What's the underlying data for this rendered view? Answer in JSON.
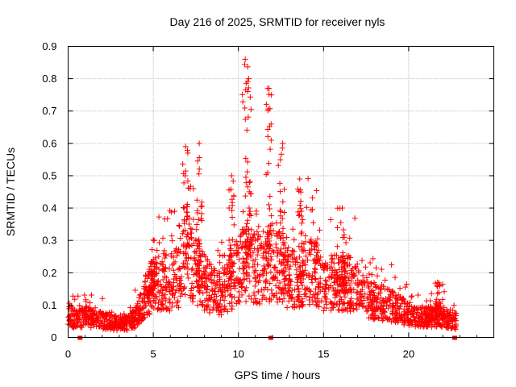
{
  "chart_data": {
    "type": "scatter",
    "title": "Day 216 of 2025, SRMTID for receiver nyls",
    "xlabel": "GPS time / hours",
    "ylabel": "SRMTID / TECUs",
    "xlim": [
      0,
      25
    ],
    "ylim": [
      0,
      0.9
    ],
    "grid": true,
    "x_ticks": [
      0,
      5,
      10,
      15,
      20
    ],
    "x_tick_labels": [
      "0",
      "5",
      "10",
      "15",
      "20"
    ],
    "y_ticks": [
      0,
      0.1,
      0.2,
      0.3,
      0.4,
      0.5,
      0.6,
      0.7,
      0.8,
      0.9
    ],
    "y_tick_labels": [
      "0",
      "0.1",
      "0.2",
      "0.3",
      "0.4",
      "0.5",
      "0.6",
      "0.7",
      "0.8",
      "0.9"
    ],
    "series": [
      {
        "name": "SRMTID",
        "marker": "+",
        "color": "#ff0000",
        "baseline": [
          [
            0.0,
            0.07
          ],
          [
            0.5,
            0.05
          ],
          [
            1.0,
            0.06
          ],
          [
            1.5,
            0.055
          ],
          [
            2.0,
            0.05
          ],
          [
            2.5,
            0.045
          ],
          [
            3.0,
            0.04
          ],
          [
            3.5,
            0.04
          ],
          [
            4.0,
            0.06
          ],
          [
            4.5,
            0.12
          ],
          [
            5.0,
            0.15
          ],
          [
            5.5,
            0.17
          ],
          [
            6.0,
            0.16
          ],
          [
            6.5,
            0.18
          ],
          [
            7.0,
            0.25
          ],
          [
            7.5,
            0.2
          ],
          [
            8.0,
            0.16
          ],
          [
            8.5,
            0.14
          ],
          [
            9.0,
            0.13
          ],
          [
            9.5,
            0.16
          ],
          [
            10.0,
            0.2
          ],
          [
            10.5,
            0.22
          ],
          [
            11.0,
            0.2
          ],
          [
            11.5,
            0.21
          ],
          [
            12.0,
            0.22
          ],
          [
            12.5,
            0.2
          ],
          [
            13.0,
            0.17
          ],
          [
            13.5,
            0.18
          ],
          [
            14.0,
            0.2
          ],
          [
            14.5,
            0.2
          ],
          [
            15.0,
            0.14
          ],
          [
            15.5,
            0.16
          ],
          [
            16.0,
            0.16
          ],
          [
            16.5,
            0.16
          ],
          [
            17.0,
            0.13
          ],
          [
            17.5,
            0.12
          ],
          [
            18.0,
            0.1
          ],
          [
            18.5,
            0.1
          ],
          [
            19.0,
            0.09
          ],
          [
            19.5,
            0.08
          ],
          [
            20.0,
            0.07
          ],
          [
            20.5,
            0.06
          ],
          [
            21.0,
            0.06
          ],
          [
            21.5,
            0.06
          ],
          [
            22.0,
            0.06
          ],
          [
            22.5,
            0.05
          ],
          [
            22.8,
            0.05
          ]
        ],
        "peaks": [
          [
            4.8,
            0.15
          ],
          [
            5.05,
            0.3
          ],
          [
            6.9,
            0.59
          ],
          [
            7.7,
            0.6
          ],
          [
            9.6,
            0.5
          ],
          [
            10.4,
            0.86
          ],
          [
            10.6,
            0.8
          ],
          [
            11.8,
            0.77
          ],
          [
            12.6,
            0.6
          ],
          [
            13.6,
            0.49
          ],
          [
            16.1,
            0.4
          ],
          [
            21.7,
            0.17
          ]
        ]
      }
    ],
    "x_markers": [
      0.7,
      11.9,
      22.7
    ]
  }
}
